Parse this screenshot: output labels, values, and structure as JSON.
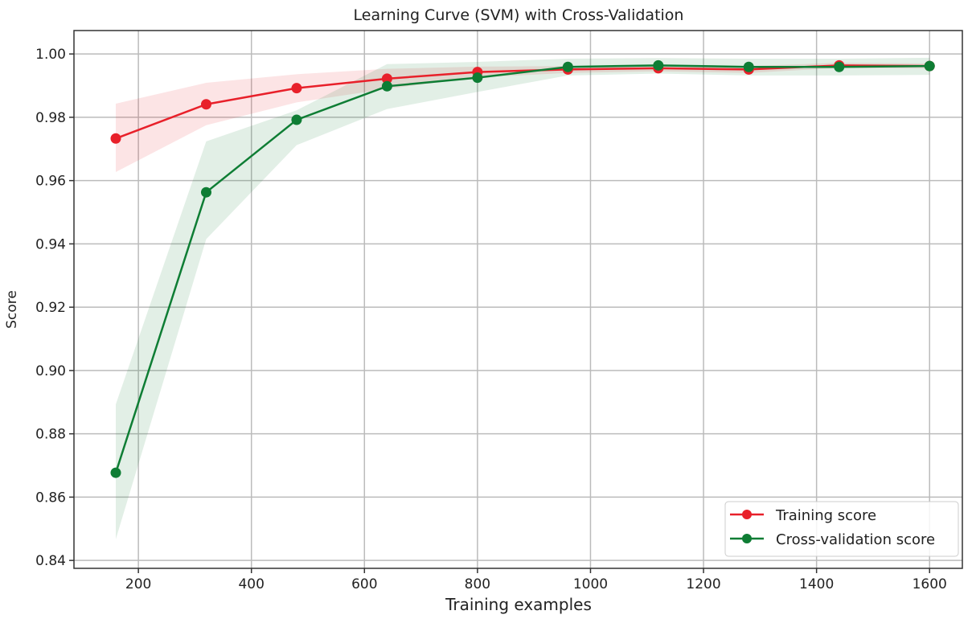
{
  "chart_data": {
    "type": "line",
    "title": "Learning Curve (SVM) with Cross-Validation",
    "xlabel": "Training examples",
    "ylabel": "Score",
    "xlim": [
      86,
      1658
    ],
    "ylim": [
      0.8375,
      1.0074
    ],
    "xticks": [
      200,
      400,
      600,
      800,
      1000,
      1200,
      1400,
      1600
    ],
    "yticks": [
      0.84,
      0.86,
      0.88,
      0.9,
      0.92,
      0.94,
      0.96,
      0.98,
      1.0
    ],
    "ytick_labels": [
      "0.84",
      "0.86",
      "0.88",
      "0.90",
      "0.92",
      "0.94",
      "0.96",
      "0.98",
      "1.00"
    ],
    "grid": true,
    "legend_position": "bottom-right",
    "x": [
      160,
      320,
      480,
      640,
      800,
      960,
      1120,
      1280,
      1440,
      1600
    ],
    "series": [
      {
        "name": "Training score",
        "color": "#e8202a",
        "values": [
          0.9733,
          0.9841,
          0.9892,
          0.9922,
          0.9943,
          0.9951,
          0.9955,
          0.9951,
          0.9964,
          0.9962
        ],
        "band_upper": [
          0.9843,
          0.9909,
          0.9936,
          0.9953,
          0.996,
          0.9962,
          0.9965,
          0.9962,
          0.9972,
          0.997
        ],
        "band_lower": [
          0.9627,
          0.9775,
          0.9847,
          0.989,
          0.9926,
          0.994,
          0.9945,
          0.994,
          0.9956,
          0.9954
        ]
      },
      {
        "name": "Cross-validation score",
        "color": "#0e7d34",
        "values": [
          0.8677,
          0.9563,
          0.9792,
          0.9898,
          0.9925,
          0.9959,
          0.9964,
          0.9959,
          0.9959,
          0.9962
        ],
        "band_upper": [
          0.8893,
          0.9724,
          0.9822,
          0.9968,
          0.9975,
          0.9985,
          0.9987,
          0.9985,
          0.9985,
          0.9988
        ],
        "band_lower": [
          0.8467,
          0.9415,
          0.9712,
          0.9826,
          0.988,
          0.9932,
          0.9938,
          0.9932,
          0.9932,
          0.9934
        ]
      }
    ]
  }
}
